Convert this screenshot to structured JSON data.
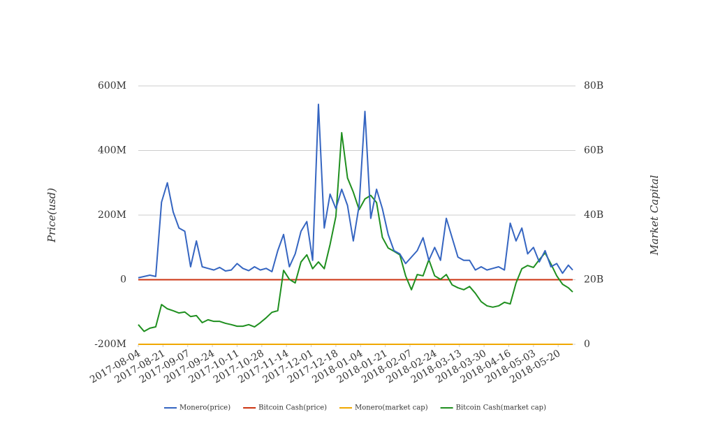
{
  "chart_data": {
    "type": "line",
    "y_label": "Price(usd)",
    "y2_label": "Market Capital",
    "x": [
      "2017-08-04",
      "2017-08-08",
      "2017-08-12",
      "2017-08-16",
      "2017-08-20",
      "2017-08-24",
      "2017-08-28",
      "2017-09-01",
      "2017-09-05",
      "2017-09-09",
      "2017-09-13",
      "2017-09-17",
      "2017-09-21",
      "2017-09-25",
      "2017-09-29",
      "2017-10-03",
      "2017-10-07",
      "2017-10-11",
      "2017-10-15",
      "2017-10-19",
      "2017-10-23",
      "2017-10-27",
      "2017-10-31",
      "2017-11-04",
      "2017-11-08",
      "2017-11-12",
      "2017-11-16",
      "2017-11-20",
      "2017-11-24",
      "2017-11-28",
      "2017-12-02",
      "2017-12-06",
      "2017-12-10",
      "2017-12-14",
      "2017-12-18",
      "2017-12-22",
      "2017-12-26",
      "2017-12-30",
      "2018-01-03",
      "2018-01-07",
      "2018-01-11",
      "2018-01-15",
      "2018-01-19",
      "2018-01-23",
      "2018-01-27",
      "2018-01-31",
      "2018-02-04",
      "2018-02-08",
      "2018-02-12",
      "2018-02-16",
      "2018-02-20",
      "2018-02-24",
      "2018-02-28",
      "2018-03-04",
      "2018-03-08",
      "2018-03-12",
      "2018-03-16",
      "2018-03-20",
      "2018-03-24",
      "2018-03-28",
      "2018-04-01",
      "2018-04-05",
      "2018-04-09",
      "2018-04-13",
      "2018-04-17",
      "2018-04-21",
      "2018-04-25",
      "2018-04-29",
      "2018-05-03",
      "2018-05-07",
      "2018-05-11",
      "2018-05-15",
      "2018-05-19",
      "2018-05-23",
      "2018-05-27",
      "2018-05-30"
    ],
    "xlim": [
      "2017-08-04",
      "2018-05-30"
    ],
    "xticks": [
      "2017-08-04",
      "2017-08-21",
      "2017-09-07",
      "2017-09-24",
      "2017-10-11",
      "2017-10-28",
      "2017-11-14",
      "2017-12-01",
      "2017-12-18",
      "2018-01-04",
      "2018-01-21",
      "2018-02-07",
      "2018-02-24",
      "2018-03-13",
      "2018-03-30",
      "2018-04-16",
      "2018-05-03",
      "2018-05-20"
    ],
    "ylim": [
      -200,
      600
    ],
    "yticks": [
      {
        "value": -200,
        "label": "-200M"
      },
      0,
      {
        "value": 200,
        "label": "200M"
      },
      {
        "value": 400,
        "label": "400M"
      },
      {
        "value": 600,
        "label": "600M"
      }
    ],
    "y2lim": [
      0,
      80
    ],
    "y2ticks": [
      0,
      {
        "value": 20,
        "label": "20B"
      },
      {
        "value": 40,
        "label": "40B"
      },
      {
        "value": 60,
        "label": "60B"
      },
      {
        "value": 80,
        "label": "80B"
      }
    ],
    "grid": true,
    "series": [
      {
        "name": "Monero(price)",
        "color": "#3565c1",
        "values": [
          6,
          10,
          14,
          10,
          240,
          300,
          210,
          160,
          150,
          40,
          120,
          40,
          35,
          30,
          38,
          27,
          30,
          50,
          35,
          28,
          40,
          30,
          35,
          25,
          90,
          140,
          40,
          80,
          150,
          180,
          60,
          543,
          160,
          265,
          220,
          280,
          230,
          120,
          230,
          521,
          190,
          280,
          220,
          140,
          90,
          80,
          50,
          70,
          90,
          130,
          60,
          100,
          60,
          190,
          130,
          70,
          60,
          60,
          30,
          40,
          30,
          35,
          40,
          30,
          175,
          120,
          160,
          80,
          100,
          55,
          90,
          40,
          50,
          20,
          45,
          30
        ]
      },
      {
        "name": "Bitcoin Cash(price)",
        "color": "#cc3311",
        "values": [
          0,
          0,
          0,
          0,
          0,
          0,
          0,
          0,
          0,
          0,
          0,
          0,
          0,
          0,
          0,
          0,
          0,
          0,
          0,
          0,
          0,
          0,
          0,
          0,
          0,
          0,
          0,
          0,
          0,
          0,
          0,
          0,
          0,
          0,
          0,
          0,
          0,
          0,
          0,
          0,
          0,
          0,
          0,
          0,
          0,
          0,
          0,
          0,
          0,
          0,
          0,
          0,
          0,
          0,
          0,
          0,
          0,
          0,
          0,
          0,
          0,
          0,
          0,
          0,
          0,
          0,
          0,
          0,
          0,
          0,
          0,
          0,
          0,
          0,
          0,
          0
        ]
      },
      {
        "name": "Monero(market cap)",
        "color": "#f0a800",
        "axis": "y2",
        "values": [
          0,
          0,
          0,
          0,
          0,
          0,
          0,
          0,
          0,
          0,
          0,
          0,
          0,
          0,
          0,
          0,
          0,
          0,
          0,
          0,
          0,
          0,
          0,
          0,
          0,
          0,
          0,
          0,
          0,
          0,
          0,
          0,
          0,
          0,
          0,
          0,
          0,
          0,
          0,
          0,
          0,
          0,
          0,
          0,
          0,
          0,
          0,
          0,
          0,
          0,
          0,
          0,
          0,
          0,
          0,
          0,
          0,
          0,
          0,
          0,
          0,
          0,
          0,
          0,
          0,
          0,
          0,
          0,
          0,
          0,
          0,
          0,
          0,
          0,
          0,
          0
        ]
      },
      {
        "name": "Bitcoin Cash(market cap)",
        "color": "#1f8f1f",
        "axis": "y2",
        "values": [
          6.1,
          4,
          5,
          5.4,
          12.3,
          11,
          10.4,
          9.7,
          10,
          8.6,
          8.9,
          6.7,
          7.6,
          7.1,
          7.1,
          6.5,
          6.1,
          5.6,
          5.6,
          6.1,
          5.4,
          6.7,
          8.2,
          9.9,
          10.4,
          22.9,
          20.1,
          19,
          25.5,
          27.7,
          23.4,
          25.5,
          23.4,
          30.9,
          39.6,
          65.5,
          51.5,
          47.1,
          41.7,
          45,
          46.1,
          43.9,
          33.1,
          29.8,
          28.8,
          27.7,
          21.2,
          16.9,
          21.6,
          21.2,
          26.2,
          21.2,
          20.1,
          21.6,
          18.4,
          17.5,
          16.9,
          17.9,
          15.8,
          13.2,
          11.9,
          11.5,
          11.9,
          13,
          12.5,
          19,
          23.4,
          24.4,
          23.8,
          26.2,
          28.3,
          24.9,
          21.2,
          18.6,
          17.5,
          16.2
        ]
      }
    ]
  }
}
